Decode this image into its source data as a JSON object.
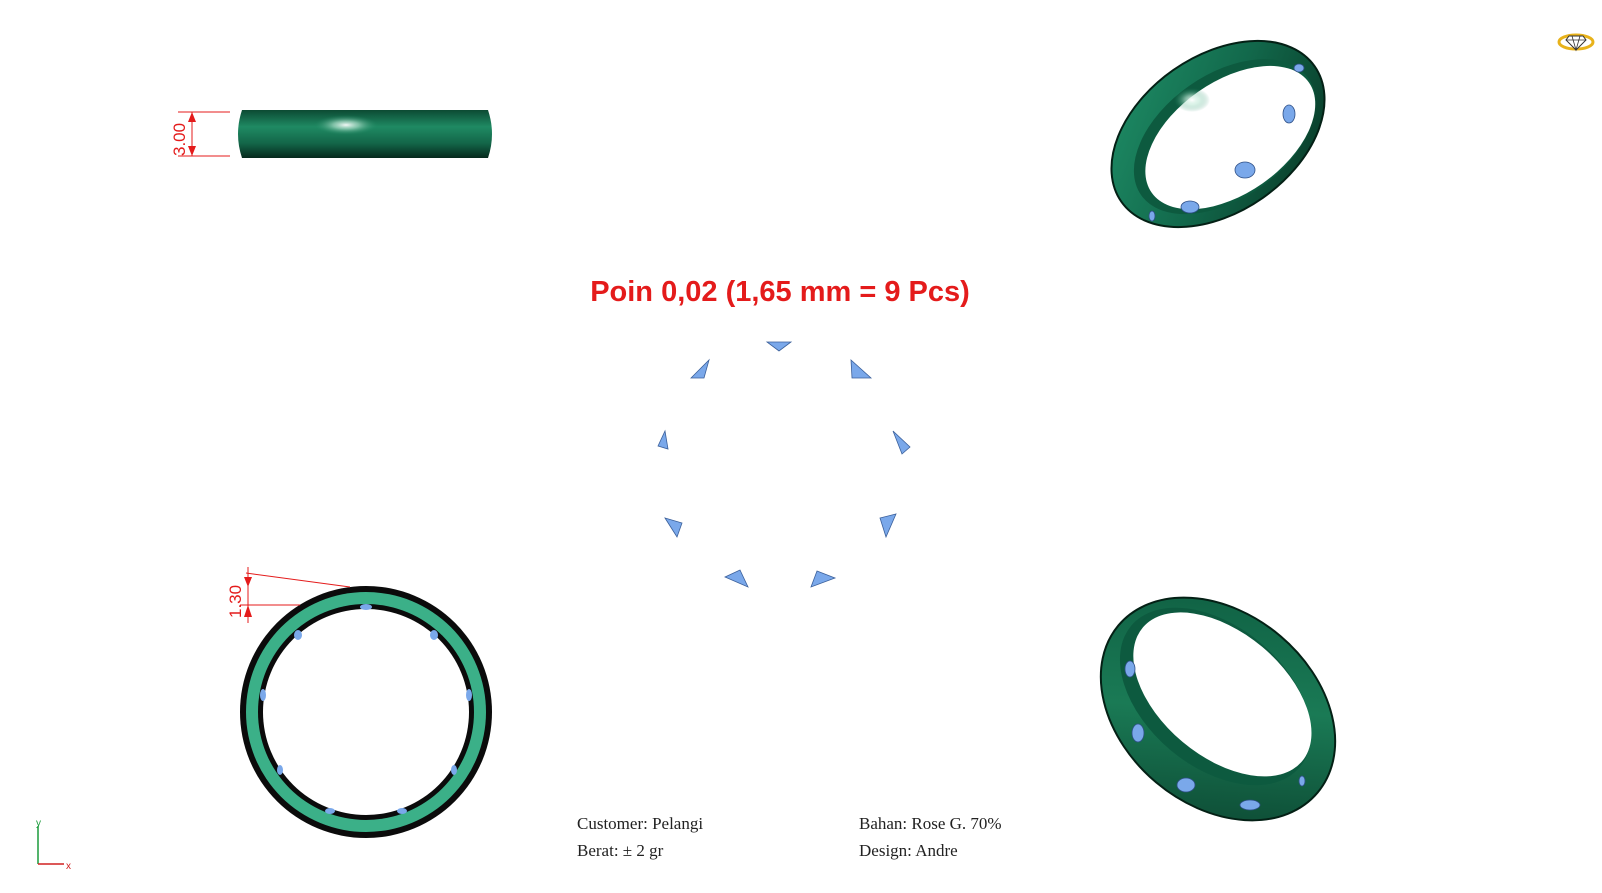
{
  "title": "Poin 0,02 (1,65 mm = 9 Pcs)",
  "dimensions": {
    "top_height": "3.00",
    "front_thickness": "1.30"
  },
  "info": {
    "customer": "Customer: Pelangi",
    "weight": "Berat: ± 2 gr",
    "material": "Bahan: Rose G. 70%",
    "design": "Design: Andre"
  },
  "axes": {
    "y_label": "y",
    "x_label": "x"
  },
  "stones": {
    "count": 9
  },
  "colors": {
    "ring": "#1a7a55",
    "ring_face": "#3bb088",
    "stone": "#7aa8ea",
    "dimension": "#e41b1b",
    "logo": "#e8b21a"
  },
  "icons": [
    "ring-logo-icon",
    "axes-icon"
  ]
}
